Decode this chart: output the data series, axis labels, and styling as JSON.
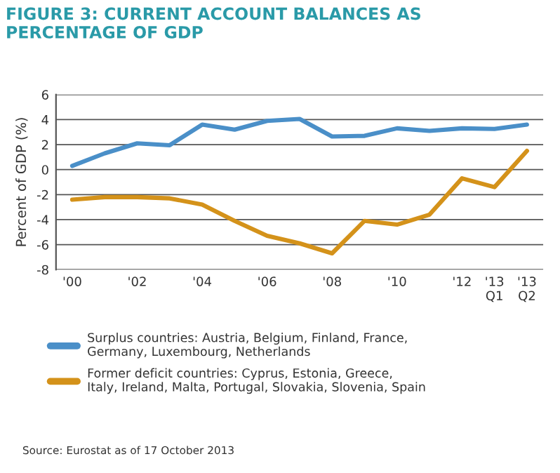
{
  "chart_data": {
    "type": "line",
    "title": "FIGURE 3: CURRENT ACCOUNT BALANCES AS\nPERCENTAGE OF GDP",
    "ylabel": "Percent of GDP (%)",
    "categories": [
      "'00",
      null,
      "'02",
      null,
      "'04",
      null,
      "'06",
      null,
      "'08",
      null,
      "'10",
      null,
      "'12",
      "'13\nQ1",
      "'13\nQ2"
    ],
    "series": [
      {
        "name": "Surplus countries: Austria, Belgium, Finland, France,\nGermany, Luxembourg, Netherlands",
        "color": "#4a8fc8",
        "values": [
          0.3,
          1.3,
          2.1,
          1.95,
          3.6,
          3.2,
          3.9,
          4.05,
          2.65,
          2.7,
          3.3,
          3.1,
          3.3,
          3.25,
          3.6
        ]
      },
      {
        "name": "Former deficit countries: Cyprus, Estonia, Greece,\nItaly, Ireland, Malta, Portugal, Slovakia, Slovenia, Spain",
        "color": "#d4921a",
        "values": [
          -2.4,
          -2.2,
          -2.2,
          -2.3,
          -2.8,
          -4.1,
          -5.3,
          -5.9,
          -6.7,
          -4.1,
          -4.4,
          -3.6,
          -0.7,
          -1.4,
          1.5
        ]
      }
    ],
    "ylim": [
      -8,
      6
    ],
    "yticks": [
      -8,
      -6,
      -4,
      -2,
      0,
      2,
      4,
      6
    ],
    "grid": "y",
    "legend": "bottom",
    "annotations": [
      "Source: Eurostat as of 17 October 2013"
    ]
  }
}
